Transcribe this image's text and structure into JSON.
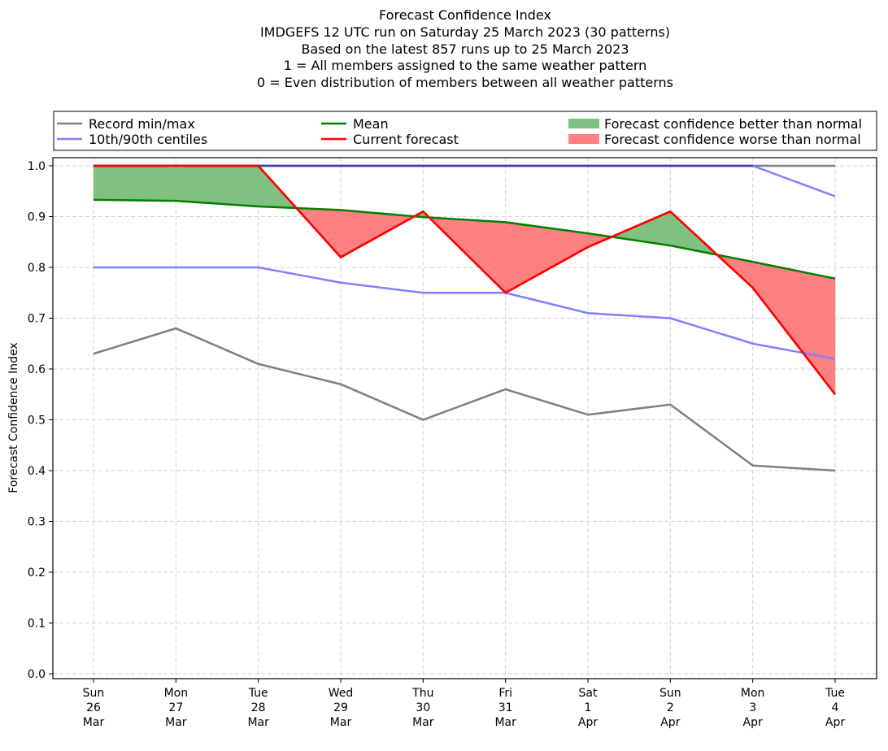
{
  "chart_data": {
    "type": "line",
    "title_lines": [
      "Forecast Confidence Index",
      "IMDGEFS 12 UTC run on Saturday 25 March 2023 (30 patterns)",
      "Based on the latest 857 runs up to 25 March 2023",
      "1 = All members assigned to the same weather pattern",
      "0 = Even distribution of members between all weather patterns"
    ],
    "xlabel": "",
    "ylabel": "Forecast Confidence Index",
    "ylim": [
      0.0,
      1.0
    ],
    "yticks": [
      "0.0",
      "0.1",
      "0.2",
      "0.3",
      "0.4",
      "0.5",
      "0.6",
      "0.7",
      "0.8",
      "0.9",
      "1.0"
    ],
    "grid": true,
    "legend_position": "top, above plot (3 columns)",
    "categories": [
      [
        "Sun",
        "26",
        "Mar"
      ],
      [
        "Mon",
        "27",
        "Mar"
      ],
      [
        "Tue",
        "28",
        "Mar"
      ],
      [
        "Wed",
        "29",
        "Mar"
      ],
      [
        "Thu",
        "30",
        "Mar"
      ],
      [
        "Fri",
        "31",
        "Mar"
      ],
      [
        "Sat",
        "1",
        "Apr"
      ],
      [
        "Sun",
        "2",
        "Apr"
      ],
      [
        "Mon",
        "3",
        "Apr"
      ],
      [
        "Tue",
        "4",
        "Apr"
      ]
    ],
    "series": [
      {
        "name": "Record max",
        "legend": "Record min/max",
        "color": "#808080",
        "values": [
          1.0,
          1.0,
          1.0,
          1.0,
          1.0,
          1.0,
          1.0,
          1.0,
          1.0,
          1.0
        ]
      },
      {
        "name": "Record min",
        "legend": "Record min/max",
        "color": "#808080",
        "values": [
          0.63,
          0.68,
          0.61,
          0.57,
          0.5,
          0.56,
          0.51,
          0.53,
          0.41,
          0.4
        ]
      },
      {
        "name": "90th centile",
        "legend": "10th/90th centiles",
        "color": "#8080ff",
        "values": [
          1.0,
          1.0,
          1.0,
          1.0,
          1.0,
          1.0,
          1.0,
          1.0,
          1.0,
          0.94
        ]
      },
      {
        "name": "10th centile",
        "legend": "10th/90th centiles",
        "color": "#8080ff",
        "values": [
          0.8,
          0.8,
          0.8,
          0.77,
          0.75,
          0.75,
          0.71,
          0.7,
          0.65,
          0.62
        ]
      },
      {
        "name": "Mean",
        "legend": "Mean",
        "color": "#008000",
        "values": [
          0.933,
          0.931,
          0.92,
          0.913,
          0.899,
          0.889,
          0.867,
          0.843,
          0.811,
          0.778
        ]
      },
      {
        "name": "Current forecast",
        "legend": "Current forecast",
        "color": "#ff0000",
        "values": [
          1.0,
          1.0,
          1.0,
          0.82,
          0.91,
          0.75,
          0.84,
          0.91,
          0.76,
          0.55
        ]
      }
    ],
    "fills": [
      {
        "name": "Forecast confidence better than normal",
        "color": "#80c080",
        "condition": "current > mean"
      },
      {
        "name": "Forecast confidence worse than normal",
        "color": "#ff8080",
        "condition": "current < mean"
      }
    ],
    "legend": [
      {
        "label": "Record min/max",
        "kind": "line",
        "color": "#808080"
      },
      {
        "label": "10th/90th centiles",
        "kind": "line",
        "color": "#8080ff"
      },
      {
        "label": "Mean",
        "kind": "line",
        "color": "#008000"
      },
      {
        "label": "Current forecast",
        "kind": "line",
        "color": "#ff0000"
      },
      {
        "label": "Forecast confidence better than normal",
        "kind": "patch",
        "color": "#80c080"
      },
      {
        "label": "Forecast confidence worse than normal",
        "kind": "patch",
        "color": "#ff8080"
      }
    ]
  }
}
